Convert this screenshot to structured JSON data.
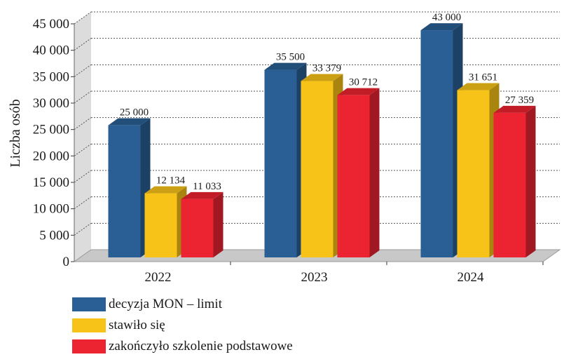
{
  "chart_data": {
    "type": "bar",
    "ylabel": "Liczba osób",
    "xlabel": "",
    "title": "",
    "ylim": [
      0,
      45000
    ],
    "yticks": [
      0,
      5000,
      10000,
      15000,
      20000,
      25000,
      30000,
      35000,
      40000,
      45000
    ],
    "ytick_labels": [
      "0",
      "5 000",
      "10 000",
      "15 000",
      "20 000",
      "25 000",
      "30 000",
      "35 000",
      "40 000",
      "45 000"
    ],
    "grid": true,
    "legend_position": "bottom-left",
    "categories": [
      "2022",
      "2023",
      "2024"
    ],
    "series": [
      {
        "name": "decyzja MON – limit",
        "color": "#2a5f95",
        "values": [
          25000,
          35500,
          43000
        ],
        "labels": [
          "25 000",
          "35 500",
          "43 000"
        ]
      },
      {
        "name": "stawiło się",
        "color": "#f8c318",
        "values": [
          12134,
          33379,
          31651
        ],
        "labels": [
          "12 134",
          "33 379",
          "31 651"
        ]
      },
      {
        "name": "zakończyło szkolenie podstawowe",
        "color": "#ec2330",
        "values": [
          11033,
          30712,
          27359
        ],
        "labels": [
          "11 033",
          "30 712",
          "27 359"
        ]
      }
    ]
  }
}
